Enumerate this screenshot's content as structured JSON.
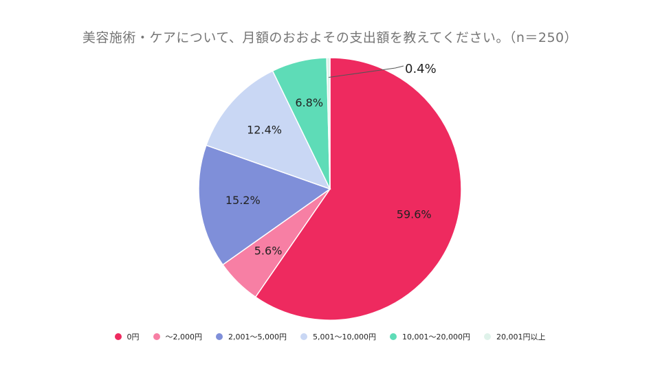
{
  "chart_data": {
    "type": "pie",
    "title": "美容施術・ケアについて、月額のおおよその支出額を教えてください。（n＝250）",
    "categories": [
      "0円",
      "～2,000円",
      "2,001～5,000円",
      "5,001～10,000円",
      "10,001～20,000円",
      "20,001円以上"
    ],
    "values": [
      59.6,
      5.6,
      15.2,
      12.4,
      6.8,
      0.4
    ],
    "value_labels": [
      "59.6%",
      "5.6%",
      "15.2%",
      "12.4%",
      "6.8%",
      "0.4%"
    ],
    "colors": [
      "#ee2a5f",
      "#f77fa4",
      "#7f8fd9",
      "#c9d7f4",
      "#5edcb7",
      "#dff2ea"
    ],
    "legend_position": "bottom"
  }
}
